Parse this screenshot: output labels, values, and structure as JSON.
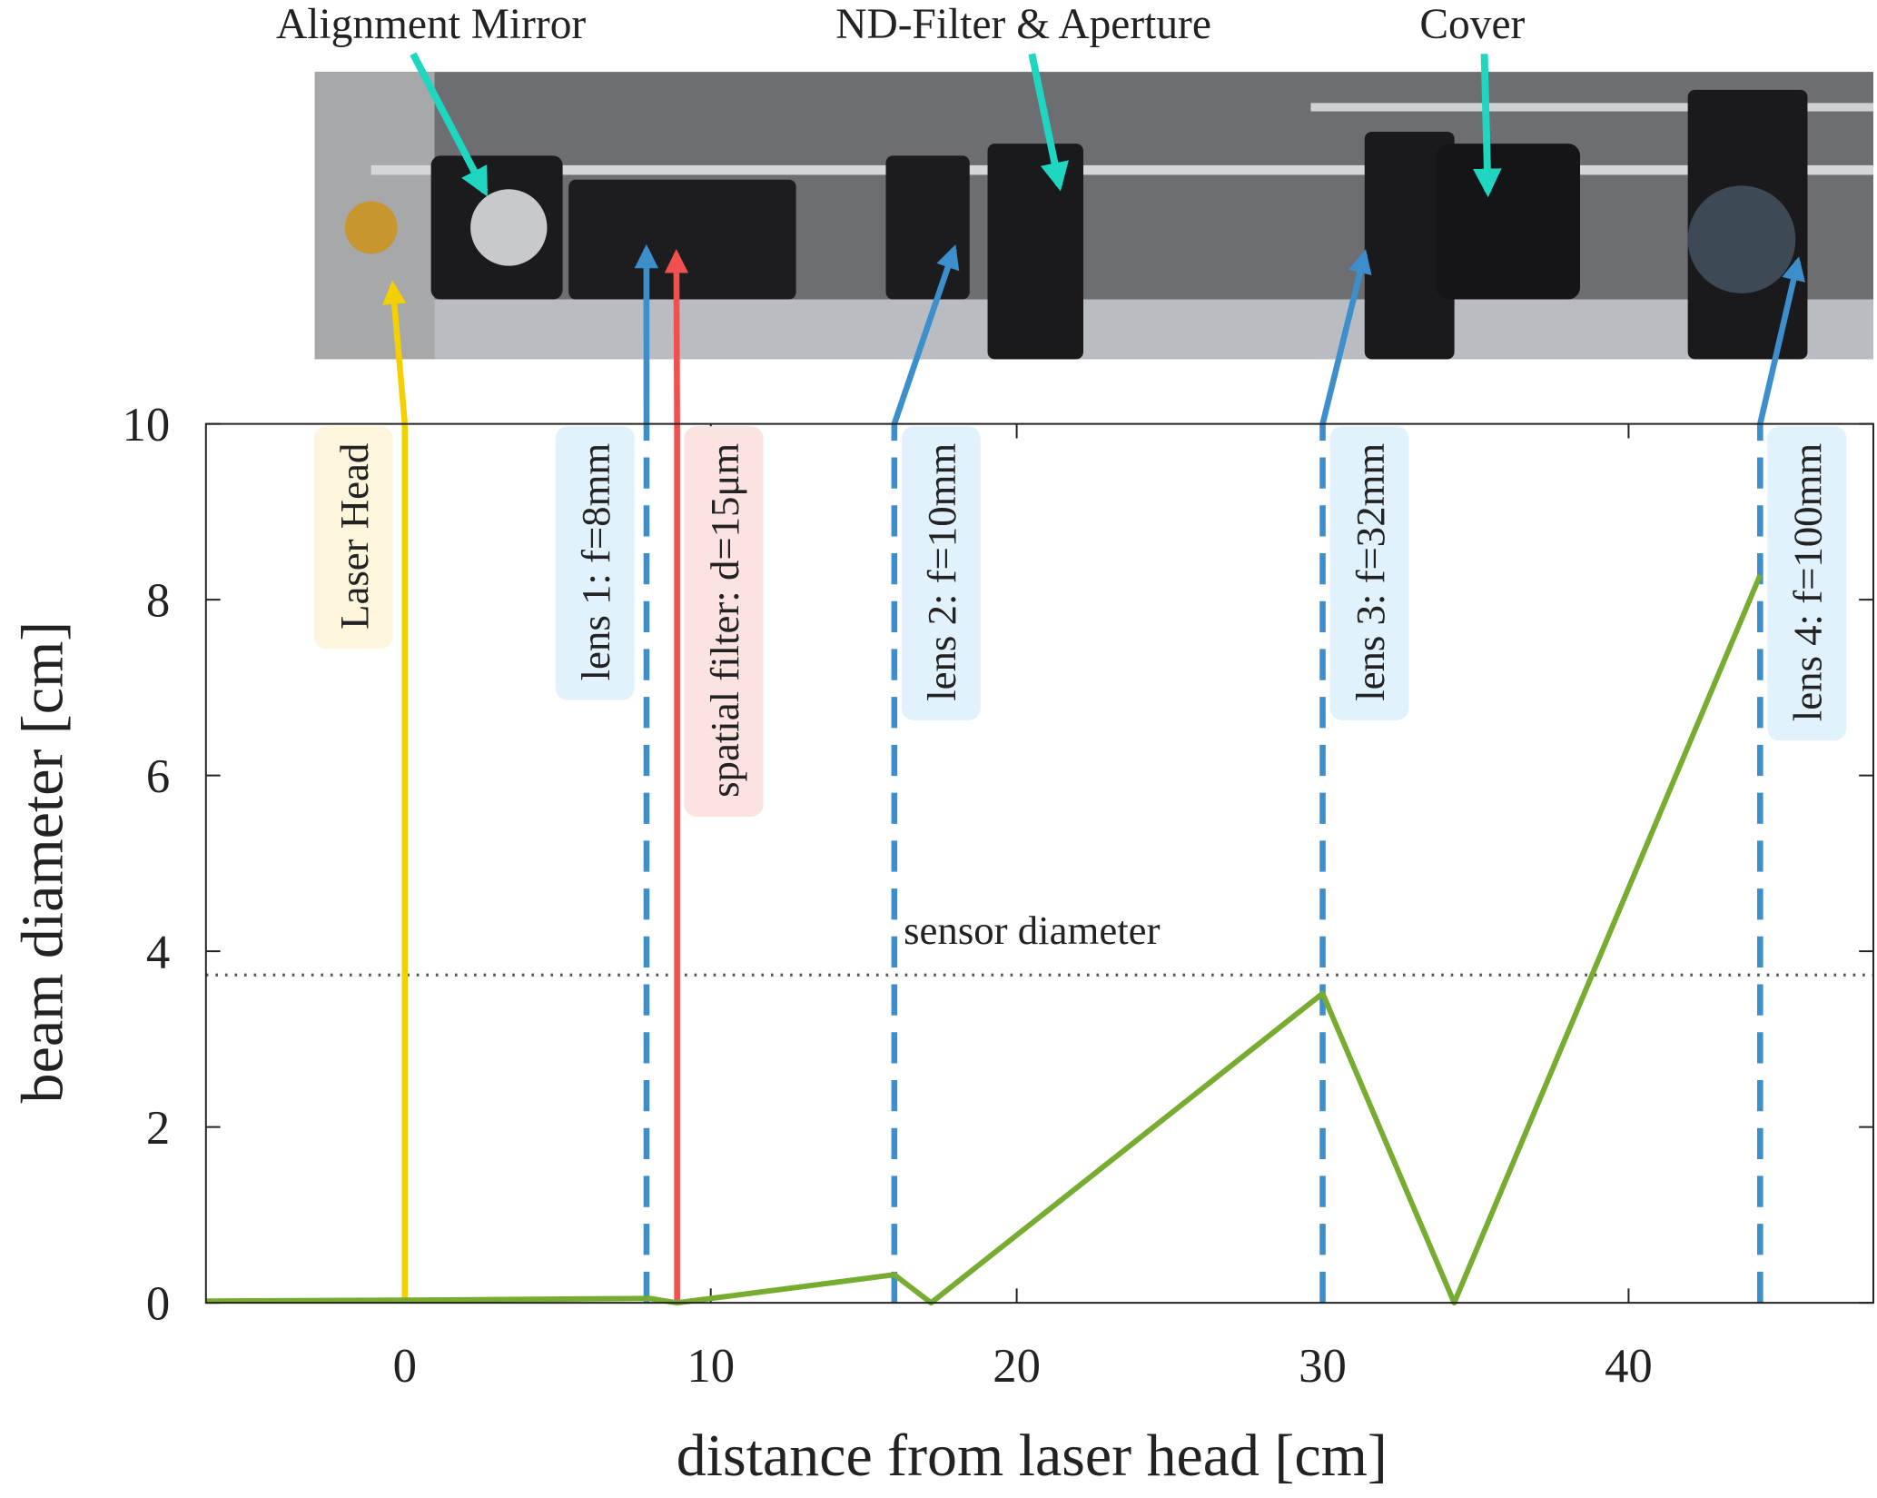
{
  "chart_data": {
    "type": "line",
    "xlabel": "distance from laser head [cm]",
    "ylabel": "beam diameter [cm]",
    "xlim": [
      -6.5,
      48
    ],
    "ylim": [
      0,
      10
    ],
    "xticks": [
      0,
      10,
      20,
      30,
      40
    ],
    "yticks": [
      0,
      2,
      4,
      6,
      8,
      10
    ],
    "x": [
      -6.5,
      0,
      8,
      8.9,
      16,
      17.2,
      30,
      34.3,
      44.3
    ],
    "series": [
      {
        "color": "#77ac30",
        "values": [
          0.02,
          0.03,
          0.05,
          0,
          0.32,
          0,
          3.52,
          0,
          8.28
        ]
      }
    ],
    "reference_line": {
      "label": "sensor diameter",
      "value": 3.73,
      "color": "#555555"
    },
    "markers": [
      {
        "label": "Laser Head",
        "x": 0,
        "color": "#f5d000",
        "box_color": "#fdf5dc",
        "text_color": "#222222",
        "style": "solid",
        "label_side": "left"
      },
      {
        "label": "lens 1: f=8mm",
        "x": 7.9,
        "color": "#3d8fcc",
        "box_color": "#e2f2fc",
        "text_color": "#2f7fc1",
        "style": "dashed",
        "label_side": "left"
      },
      {
        "label": "spatial filter: d=15μm",
        "x": 8.9,
        "color": "#f25050",
        "box_color": "#fde2e2",
        "text_color": "#e01c1c",
        "style": "solid",
        "label_side": "right"
      },
      {
        "label": "lens 2: f=10mm",
        "x": 16,
        "color": "#3d8fcc",
        "box_color": "#e2f2fc",
        "text_color": "#2f7fc1",
        "style": "dashed",
        "label_side": "right"
      },
      {
        "label": "lens 3: f=32mm",
        "x": 30,
        "color": "#3d8fcc",
        "box_color": "#e2f2fc",
        "text_color": "#2f7fc1",
        "style": "dashed",
        "label_side": "right"
      },
      {
        "label": "lens 4: f=100mm",
        "x": 44.3,
        "color": "#3d8fcc",
        "box_color": "#e2f2fc",
        "text_color": "#2f7fc1",
        "style": "dashed",
        "label_side": "right"
      }
    ]
  },
  "photo": {
    "labels": [
      "Alignment Mirror",
      "ND-Filter & Aperture",
      "Cover"
    ]
  }
}
